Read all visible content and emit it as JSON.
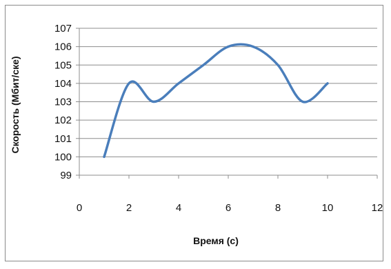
{
  "chart_data": {
    "type": "line",
    "title": "",
    "xlabel": "Время (с)",
    "ylabel": "Скорость (Мбит/ске)",
    "xlim": [
      0,
      12
    ],
    "ylim": [
      99,
      107
    ],
    "x_ticks": [
      "0",
      "2",
      "4",
      "6",
      "8",
      "10",
      "12"
    ],
    "y_ticks": [
      "99",
      "100",
      "101",
      "102",
      "103",
      "104",
      "105",
      "106",
      "107"
    ],
    "grid": "horizontal",
    "legend": "none",
    "smooth": true,
    "line_color": "#4a7ebb",
    "series": [
      {
        "x": [
          1,
          2,
          3,
          4,
          5,
          6,
          7,
          8,
          9,
          10
        ],
        "values": [
          100,
          104,
          103,
          104,
          105,
          106,
          106,
          105,
          103,
          104
        ]
      }
    ]
  }
}
